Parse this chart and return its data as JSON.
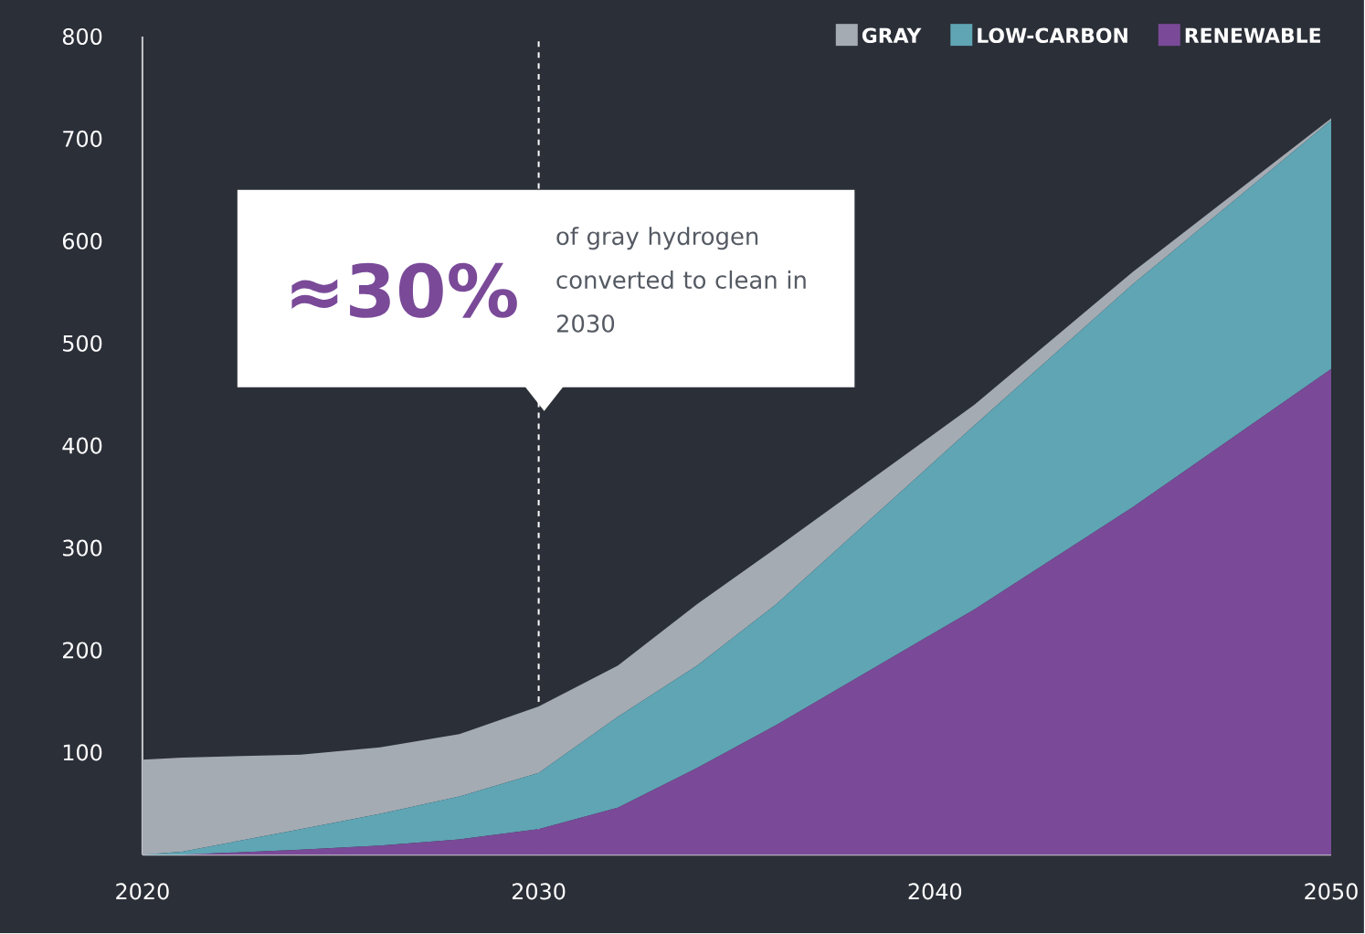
{
  "chart_data": {
    "type": "area",
    "stacked": true,
    "x": [
      2020,
      2021,
      2024,
      2026,
      2028,
      2030,
      2032,
      2034,
      2036,
      2041,
      2045,
      2050
    ],
    "series": [
      {
        "name": "RENEWABLE",
        "color": "#7a4a98",
        "values": [
          0,
          0,
          5,
          9,
          15,
          25,
          46,
          85,
          127,
          240,
          340,
          475
        ]
      },
      {
        "name": "LOW-CARBON",
        "color": "#5fa5b4",
        "values": [
          0,
          3,
          20,
          31,
          42,
          55,
          89,
          100,
          118,
          180,
          218,
          243
        ]
      },
      {
        "name": "GRAY",
        "color": "#a4abb3",
        "values": [
          93,
          92,
          73,
          65,
          61,
          65,
          50,
          60,
          55,
          20,
          12,
          2
        ]
      }
    ],
    "xlim": [
      2020,
      2050
    ],
    "ylim": [
      0,
      800
    ],
    "xticks": [
      2020,
      2030,
      2040,
      2050
    ],
    "yticks": [
      100,
      200,
      300,
      400,
      500,
      600,
      700,
      800
    ],
    "grid": false,
    "legend": "top right",
    "ref_lines": [
      {
        "axis": "x",
        "value": 2030,
        "label": null,
        "color": "#ffffff",
        "line_style": "dashed"
      }
    ],
    "annotations": [
      "≈30%",
      "of gray hydrogen converted to clean in 2030"
    ]
  }
}
